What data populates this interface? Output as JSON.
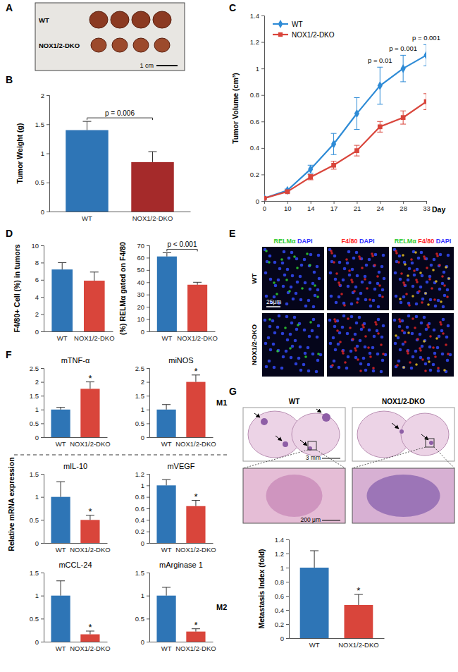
{
  "panel_labels": [
    "A",
    "B",
    "C",
    "D",
    "E",
    "F",
    "G"
  ],
  "images": {
    "A": {
      "rows": [
        "WT",
        "NOX1/2-DKO"
      ],
      "scale_bar": "1 cm"
    },
    "E": {
      "columns": [
        {
          "parts": [
            {
              "text": "RELMα",
              "color": "#33cc33"
            },
            {
              "text": "DAPI",
              "color": "#3333ff"
            }
          ]
        },
        {
          "parts": [
            {
              "text": "F4/80",
              "color": "#ff2222"
            },
            {
              "text": "DAPI",
              "color": "#3333ff"
            }
          ]
        },
        {
          "parts": [
            {
              "text": "RELMα",
              "color": "#33cc33"
            },
            {
              "text": "F4/80",
              "color": "#ff2222"
            },
            {
              "text": "DAPI",
              "color": "#3333ff"
            }
          ]
        }
      ],
      "rows": [
        "WT",
        "NOX1/2-DKO"
      ],
      "scale_bar": "25μm"
    },
    "G": {
      "columns": [
        "WT",
        "NOX1/2-DKO"
      ],
      "scale_bars": [
        "3 mm",
        "200 μm"
      ]
    }
  },
  "panel_f": {
    "ylabel": "Relative mRNA expression",
    "groups": [
      "M1",
      "M2"
    ]
  },
  "chart_data": [
    {
      "type": "bar",
      "ylabel": "Tumor Weight (g)",
      "categories": [
        "WT",
        "NOX1/2-DKO"
      ],
      "values": [
        1.4,
        0.85
      ],
      "errors": [
        0.15,
        0.18
      ],
      "colors": [
        "#2e75b6",
        "#a52a2a"
      ],
      "ylim": [
        0,
        2
      ],
      "yticks": [
        0,
        0.5,
        1,
        1.5,
        2
      ],
      "annotations": [
        {
          "text": "p = 0.006",
          "categories": [
            "WT",
            "NOX1/2-DKO"
          ]
        }
      ]
    },
    {
      "type": "line",
      "ylabel": "Tumor Volume (cm³)",
      "xlabel": "Day",
      "categories": [
        "0",
        "10",
        "14",
        "17",
        "21",
        "24",
        "28",
        "33"
      ],
      "series": [
        {
          "name": "WT",
          "color": "#2e8bd6",
          "marker": "diamond",
          "values": [
            0.02,
            0.08,
            0.24,
            0.43,
            0.66,
            0.87,
            1.0,
            1.1
          ],
          "errors": [
            0.005,
            0.01,
            0.03,
            0.08,
            0.12,
            0.14,
            0.1,
            0.08
          ]
        },
        {
          "name": "NOX1/2-DKO",
          "color": "#d9453b",
          "marker": "square",
          "values": [
            0.02,
            0.07,
            0.18,
            0.27,
            0.38,
            0.56,
            0.63,
            0.75
          ],
          "errors": [
            0.005,
            0.01,
            0.02,
            0.03,
            0.04,
            0.04,
            0.05,
            0.06
          ]
        }
      ],
      "ylim": [
        0,
        1.4
      ],
      "yticks": [
        0,
        0.2,
        0.4,
        0.6,
        0.8,
        1,
        1.2,
        1.4
      ],
      "legend": "upper left",
      "annotations": [
        {
          "x": "24",
          "text": "p = 0.01"
        },
        {
          "x": "28",
          "text": "p = 0.001"
        },
        {
          "x": "33",
          "text": "p = 0.001"
        }
      ]
    },
    {
      "type": "bar",
      "ylabel": "F4/80+ Cell (%) in tumors",
      "categories": [
        "WT",
        "NOX1/2-DKO"
      ],
      "values": [
        7.2,
        5.9
      ],
      "errors": [
        0.8,
        1.0
      ],
      "colors": [
        "#2e75b6",
        "#d9453b"
      ],
      "ylim": [
        0,
        10
      ],
      "yticks": [
        0,
        2,
        4,
        6,
        8,
        10
      ]
    },
    {
      "type": "bar",
      "ylabel": "(%) RELMα gated on F4/80",
      "categories": [
        "WT",
        "NOX1/2-DKO"
      ],
      "values": [
        61,
        38
      ],
      "errors": [
        3,
        2
      ],
      "colors": [
        "#2e75b6",
        "#d9453b"
      ],
      "ylim": [
        0,
        70
      ],
      "yticks": [
        0,
        10,
        20,
        30,
        40,
        50,
        60,
        70
      ],
      "annotations": [
        {
          "text": "p < 0.001",
          "categories": [
            "WT",
            "NOX1/2-DKO"
          ]
        }
      ]
    },
    {
      "type": "bar",
      "title": "mTNF-α",
      "categories": [
        "WT",
        "NOX1/2-DKO"
      ],
      "values": [
        1.0,
        1.75
      ],
      "errors": [
        0.08,
        0.25
      ],
      "colors": [
        "#2e75b6",
        "#d9453b"
      ],
      "ylim": [
        0,
        2.5
      ],
      "yticks": [
        0,
        0.5,
        1,
        1.5,
        2,
        2.5
      ],
      "annotations": [
        {
          "text": "*",
          "category": "NOX1/2-DKO"
        }
      ]
    },
    {
      "type": "bar",
      "title": "miNOS",
      "categories": [
        "WT",
        "NOX1/2-DKO"
      ],
      "values": [
        1.0,
        2.0
      ],
      "errors": [
        0.18,
        0.25
      ],
      "colors": [
        "#2e75b6",
        "#d9453b"
      ],
      "ylim": [
        0,
        2.5
      ],
      "yticks": [
        0,
        0.5,
        1,
        1.5,
        2,
        2.5
      ],
      "annotations": [
        {
          "text": "*",
          "category": "NOX1/2-DKO"
        }
      ]
    },
    {
      "type": "bar",
      "title": "mIL-10",
      "categories": [
        "WT",
        "NOX1/2-DKO"
      ],
      "values": [
        1.0,
        0.5
      ],
      "errors": [
        0.33,
        0.1
      ],
      "colors": [
        "#2e75b6",
        "#d9453b"
      ],
      "ylim": [
        0,
        1.5
      ],
      "yticks": [
        0,
        0.5,
        1,
        1.5
      ],
      "annotations": [
        {
          "text": "*",
          "category": "NOX1/2-DKO"
        }
      ]
    },
    {
      "type": "bar",
      "title": "mVEGF",
      "categories": [
        "WT",
        "NOX1/2-DKO"
      ],
      "values": [
        1.0,
        0.64
      ],
      "errors": [
        0.1,
        0.1
      ],
      "colors": [
        "#2e75b6",
        "#d9453b"
      ],
      "ylim": [
        0,
        1.2
      ],
      "yticks": [
        0,
        0.2,
        0.4,
        0.6,
        0.8,
        1,
        1.2
      ],
      "annotations": [
        {
          "text": "*",
          "category": "NOX1/2-DKO"
        }
      ]
    },
    {
      "type": "bar",
      "title": "mCCL-24",
      "categories": [
        "WT",
        "NOX1/2-DKO"
      ],
      "values": [
        1.0,
        0.16
      ],
      "errors": [
        0.32,
        0.07
      ],
      "colors": [
        "#2e75b6",
        "#d9453b"
      ],
      "ylim": [
        0,
        1.5
      ],
      "yticks": [
        0,
        0.5,
        1,
        1.5
      ],
      "annotations": [
        {
          "text": "*",
          "category": "NOX1/2-DKO"
        }
      ]
    },
    {
      "type": "bar",
      "title": "mArginase 1",
      "categories": [
        "WT",
        "NOX1/2-DKO"
      ],
      "values": [
        1.0,
        0.22
      ],
      "errors": [
        0.18,
        0.06
      ],
      "colors": [
        "#2e75b6",
        "#d9453b"
      ],
      "ylim": [
        0,
        1.5
      ],
      "yticks": [
        0,
        0.5,
        1,
        1.5
      ],
      "annotations": [
        {
          "text": "*",
          "category": "NOX1/2-DKO"
        }
      ]
    },
    {
      "type": "bar",
      "ylabel": "Metastasis Index (fold)",
      "categories": [
        "WT",
        "NOX1/2-DKO"
      ],
      "values": [
        1.0,
        0.47
      ],
      "errors": [
        0.24,
        0.15
      ],
      "colors": [
        "#2e75b6",
        "#d9453b"
      ],
      "ylim": [
        0,
        1.4
      ],
      "yticks": [
        0,
        0.2,
        0.4,
        0.6,
        0.8,
        1,
        1.2,
        1.4
      ],
      "annotations": [
        {
          "text": "*",
          "category": "NOX1/2-DKO"
        }
      ]
    }
  ]
}
